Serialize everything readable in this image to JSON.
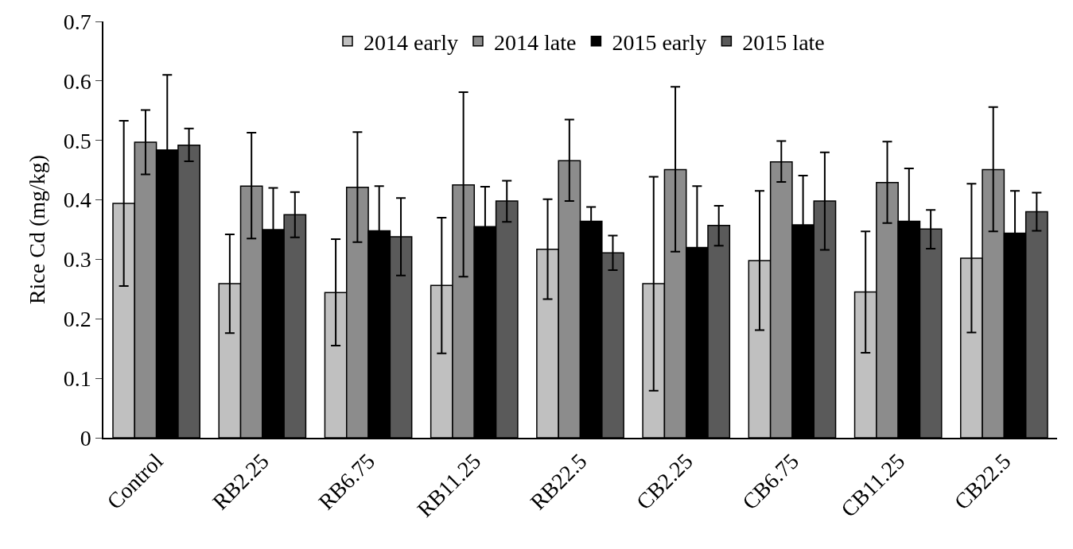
{
  "chart_data": {
    "type": "bar",
    "ylabel": "Rice Cd (mg/kg)",
    "categories": [
      "Control",
      "RB2.25",
      "RB6.75",
      "RB11.25",
      "RB22.5",
      "CB2.25",
      "CB6.75",
      "CB11.25",
      "CB22.5"
    ],
    "series": [
      {
        "name": "2014 early",
        "color": "#c0c0c0",
        "values": [
          0.394,
          0.259,
          0.244,
          0.256,
          0.317,
          0.259,
          0.298,
          0.245,
          0.302
        ],
        "errors": [
          [
            0.255,
            0.533
          ],
          [
            0.176,
            0.342
          ],
          [
            0.155,
            0.334
          ],
          [
            0.142,
            0.37
          ],
          [
            0.233,
            0.401
          ],
          [
            0.079,
            0.439
          ],
          [
            0.181,
            0.415
          ],
          [
            0.143,
            0.347
          ],
          [
            0.177,
            0.427
          ]
        ]
      },
      {
        "name": "2014 late",
        "color": "#8c8c8c",
        "values": [
          0.497,
          0.423,
          0.421,
          0.425,
          0.466,
          0.451,
          0.464,
          0.429,
          0.451
        ],
        "errors": [
          [
            0.443,
            0.551
          ],
          [
            0.335,
            0.513
          ],
          [
            0.329,
            0.514
          ],
          [
            0.271,
            0.581
          ],
          [
            0.398,
            0.535
          ],
          [
            0.313,
            0.59
          ],
          [
            0.43,
            0.499
          ],
          [
            0.361,
            0.498
          ],
          [
            0.347,
            0.556
          ]
        ]
      },
      {
        "name": "2015 early",
        "color": "#000000",
        "values": [
          0.484,
          0.35,
          0.348,
          0.355,
          0.364,
          0.32,
          0.358,
          0.364,
          0.344
        ],
        "errors": [
          0.126,
          0.07,
          0.075,
          0.067,
          0.024,
          0.103,
          0.083,
          0.089,
          0.071
        ]
      },
      {
        "name": "2015 late",
        "color": "#5a5a5a",
        "values": [
          0.492,
          0.375,
          0.338,
          0.398,
          0.311,
          0.357,
          0.398,
          0.351,
          0.38
        ],
        "errors": [
          [
            0.465,
            0.52
          ],
          [
            0.337,
            0.413
          ],
          [
            0.273,
            0.403
          ],
          [
            0.363,
            0.432
          ],
          [
            0.282,
            0.34
          ],
          [
            0.323,
            0.39
          ],
          [
            0.316,
            0.48
          ],
          [
            0.318,
            0.383
          ],
          [
            0.348,
            0.412
          ]
        ]
      }
    ],
    "ylim": [
      0,
      0.7
    ],
    "yticks": [
      {
        "value": 0,
        "label": "0"
      },
      0.1,
      0.2,
      0.3,
      0.4,
      0.5,
      0.6,
      0.7
    ],
    "legend": "top"
  }
}
